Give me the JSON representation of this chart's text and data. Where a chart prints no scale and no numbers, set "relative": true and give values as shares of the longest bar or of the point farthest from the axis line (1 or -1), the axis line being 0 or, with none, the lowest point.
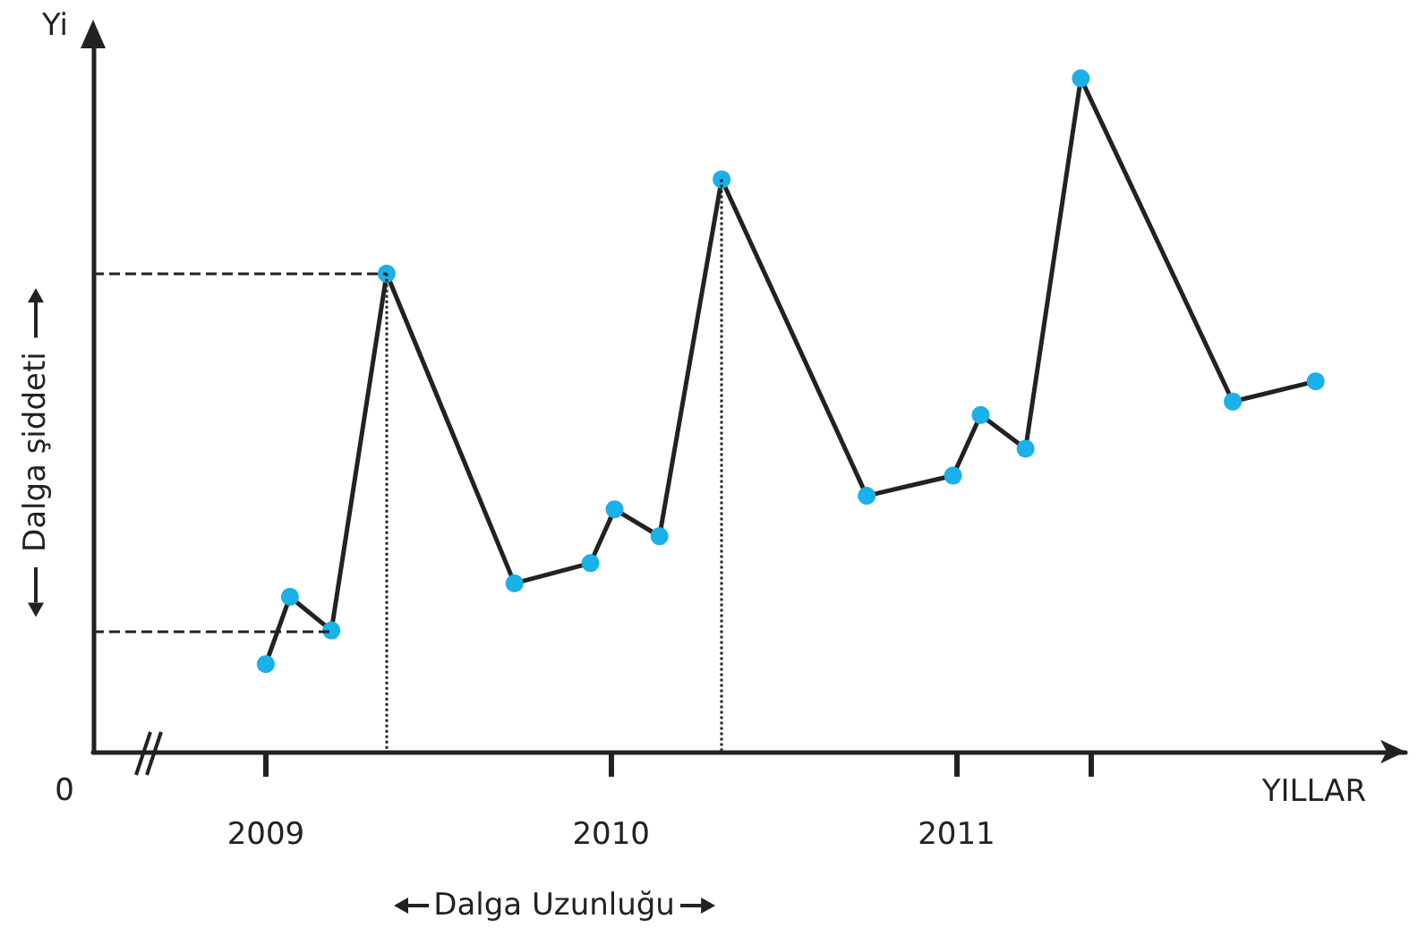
{
  "chart_data": {
    "type": "line",
    "relative": true,
    "ylabel": "Yi",
    "xlabel": "YILLAR",
    "x": [
      2009.0,
      2009.07,
      2009.19,
      2009.35,
      2009.72,
      2009.94,
      2010.01,
      2010.14,
      2010.32,
      2010.74,
      2010.99,
      2011.07,
      2011.2,
      2011.36,
      2011.8,
      2012.04
    ],
    "series": [
      {
        "color": "#1ab0e8",
        "values": [
          0.13,
          0.23,
          0.18,
          0.71,
          0.25,
          0.28,
          0.36,
          0.32,
          0.85,
          0.38,
          0.41,
          0.5,
          0.45,
          1,
          0.52,
          0.55
        ]
      }
    ],
    "xlim": [
      2008.5,
      2012.3
    ],
    "xticks": [
      2009,
      2010,
      2011,
      {
        "value": 2011.39,
        "label": null
      }
    ],
    "tick_labels": "x",
    "marker": "circle",
    "line_style": "solid",
    "ref_lines": [
      {
        "axis": "y",
        "value": 0.71,
        "color": "#222222",
        "line_style": "dashed"
      },
      {
        "axis": "y",
        "value": 0.18,
        "color": "#222222",
        "line_style": "dashed"
      },
      {
        "axis": "x",
        "value": 2009.35,
        "color": "#222222",
        "line_style": "dotted"
      },
      {
        "axis": "x",
        "value": 2010.32,
        "color": "#222222",
        "line_style": "dotted"
      }
    ],
    "annotations": [
      "0",
      "Dalga şiddeti",
      "Dalga Uzunluğu"
    ]
  }
}
